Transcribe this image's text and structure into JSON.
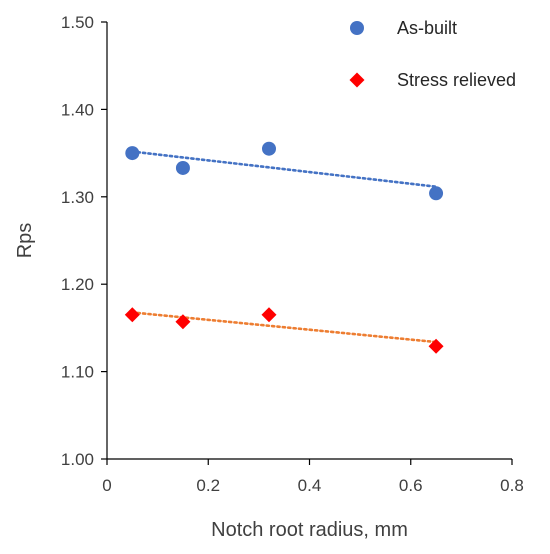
{
  "chart_data": {
    "type": "scatter",
    "xlabel": "Notch root radius, mm",
    "ylabel": "Rps",
    "xlim": [
      0,
      0.8
    ],
    "ylim": [
      1.0,
      1.5
    ],
    "x_ticks": [
      "0",
      "0.2",
      "0.4",
      "0.6",
      "0.8"
    ],
    "y_ticks": [
      "1.00",
      "1.10",
      "1.20",
      "1.30",
      "1.40",
      "1.50"
    ],
    "grid": false,
    "legend_position": "top-right",
    "series": [
      {
        "name": "As-built",
        "marker": "circle",
        "color": "#4472C4",
        "x": [
          0.05,
          0.15,
          0.32,
          0.65
        ],
        "y": [
          1.35,
          1.333,
          1.355,
          1.304
        ],
        "trendline": {
          "type": "linear",
          "style": "dotted",
          "color": "#4472C4"
        }
      },
      {
        "name": "Stress relieved",
        "marker": "diamond",
        "color": "#FF0000",
        "x": [
          0.05,
          0.15,
          0.32,
          0.65
        ],
        "y": [
          1.165,
          1.157,
          1.165,
          1.129
        ],
        "trendline": {
          "type": "linear",
          "style": "dotted",
          "color": "#ED7D31"
        }
      }
    ]
  }
}
